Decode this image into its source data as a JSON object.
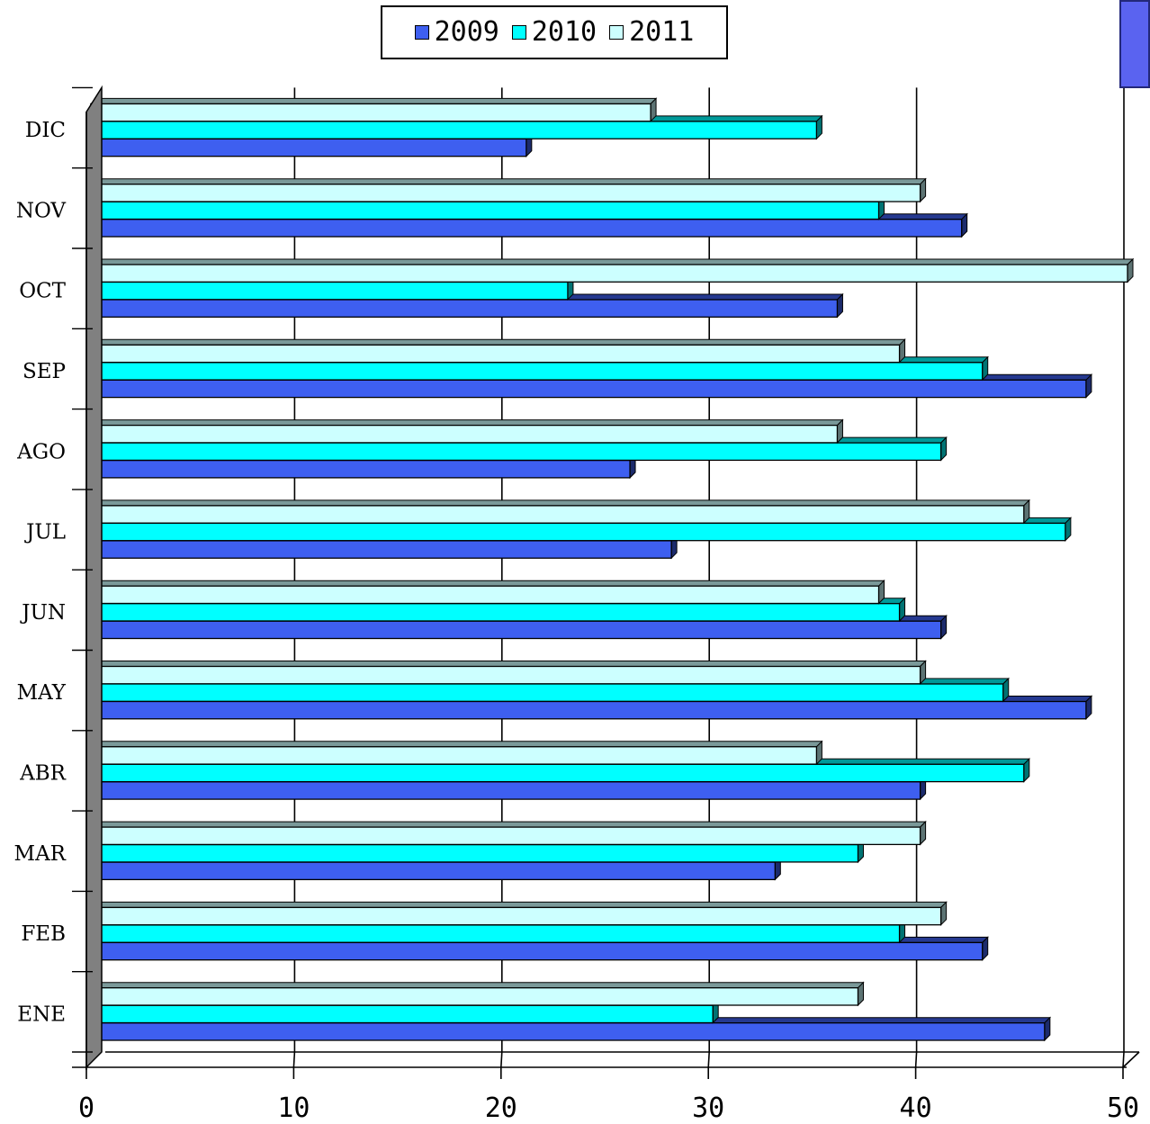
{
  "chart_data": {
    "type": "bar",
    "orientation": "horizontal",
    "style": "3d",
    "title": "",
    "xlabel": "",
    "ylabel": "",
    "xlim": [
      0,
      50
    ],
    "x_ticks": [
      "0",
      "10",
      "20",
      "30",
      "40",
      "50"
    ],
    "categories": [
      "ENE",
      "FEB",
      "MAR",
      "ABR",
      "MAY",
      "JUN",
      "JUL",
      "AGO",
      "SEP",
      "OCT",
      "NOV",
      "DIC"
    ],
    "series": [
      {
        "name": "2009",
        "color": "#3e5ff0",
        "values": [
          46,
          43,
          33,
          40,
          48,
          41,
          28,
          26,
          48,
          36,
          42,
          21
        ]
      },
      {
        "name": "2010",
        "color": "#00ffff",
        "values": [
          30,
          39,
          37,
          45,
          44,
          39,
          47,
          41,
          43,
          23,
          38,
          35
        ]
      },
      {
        "name": "2011",
        "color": "#ccffff",
        "values": [
          37,
          41,
          40,
          35,
          40,
          38,
          45,
          36,
          39,
          50,
          40,
          27
        ]
      }
    ],
    "grid": "vertical",
    "legend_position": "top-center"
  }
}
